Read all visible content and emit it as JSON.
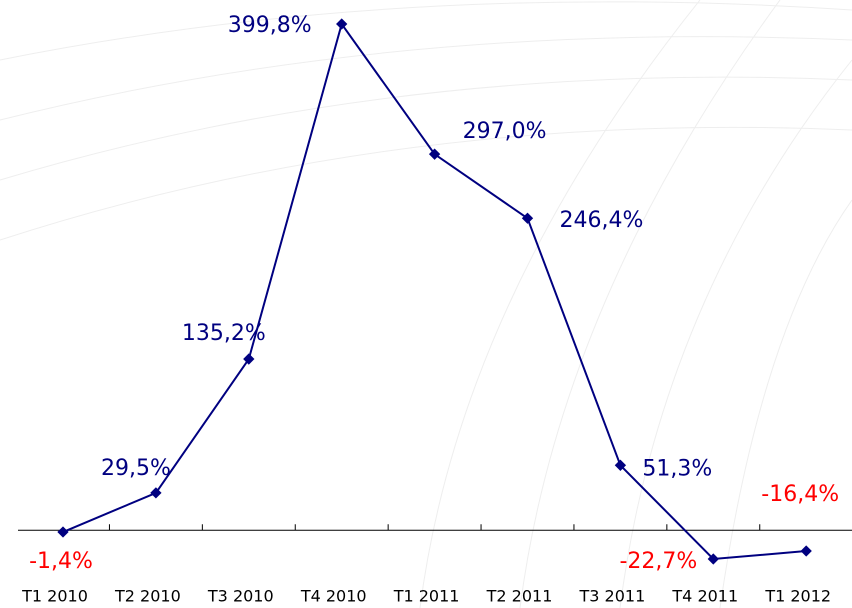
{
  "chart_data": {
    "type": "line",
    "categories": [
      "T1 2010",
      "T2 2010",
      "T3 2010",
      "T4 2010",
      "T1 2011",
      "T2 2011",
      "T3 2011",
      "T4 2011",
      "T1 2012"
    ],
    "series": [
      {
        "color": "#000080",
        "values": [
          -1.4,
          29.5,
          135.2,
          399.8,
          297.0,
          246.4,
          51.3,
          -22.7,
          -16.4
        ],
        "value_labels": [
          "-1,4%",
          "29,5%",
          "135,2%",
          "399,8%",
          "297,0%",
          "246,4%",
          "51,3%",
          "-22,7%",
          "-16,4%"
        ]
      }
    ],
    "label_color": "#000080",
    "negative_label_color": "#ff0000"
  }
}
